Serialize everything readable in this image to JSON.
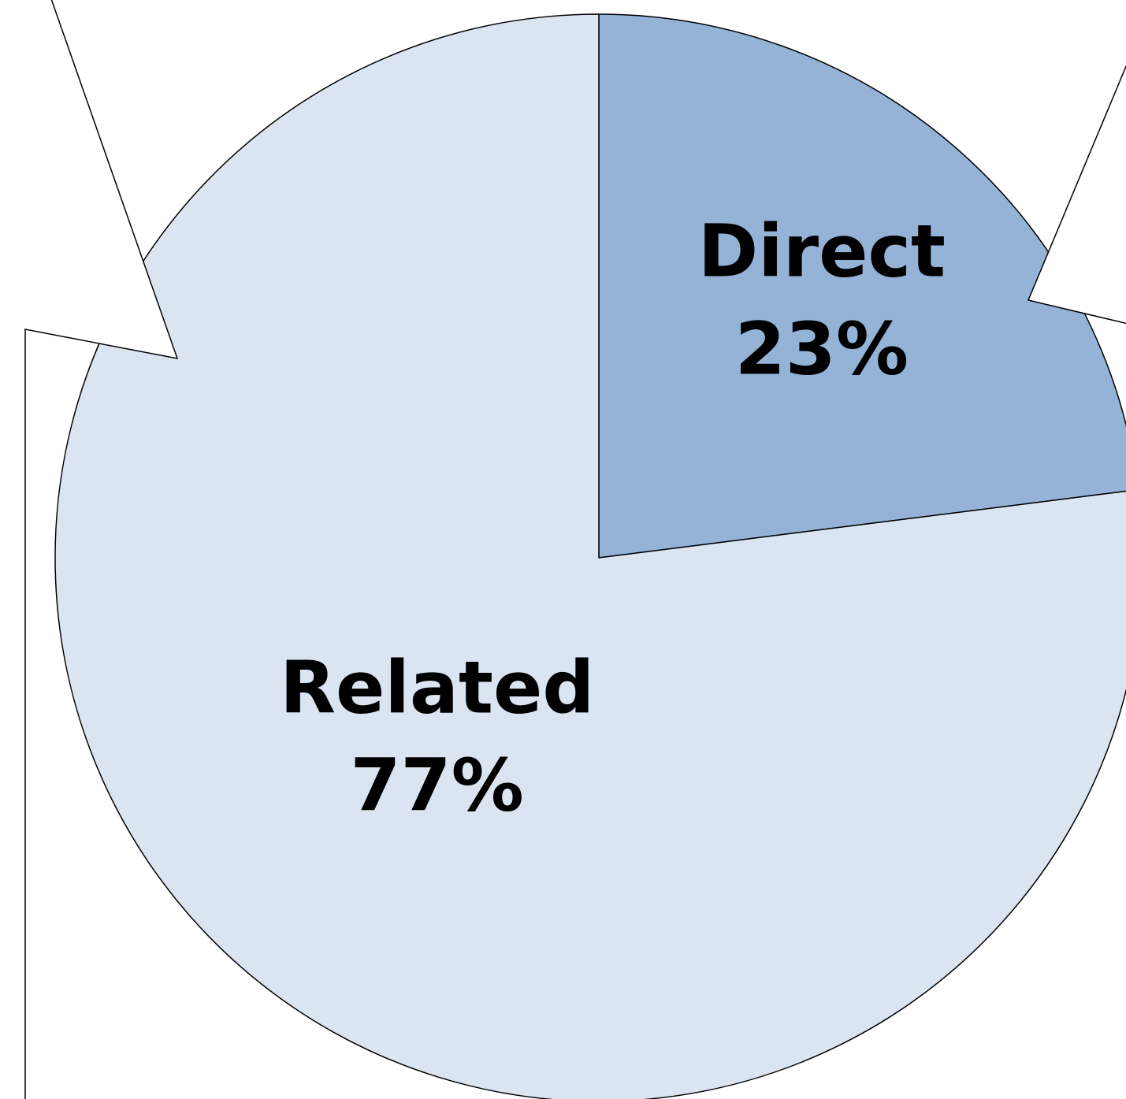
{
  "chart_data": {
    "type": "pie",
    "categories": [
      "Direct",
      "Related"
    ],
    "values": [
      23,
      77
    ],
    "value_labels": [
      "23%",
      "77%"
    ],
    "colors": [
      "#95b3d7",
      "#dbe5f1"
    ]
  }
}
